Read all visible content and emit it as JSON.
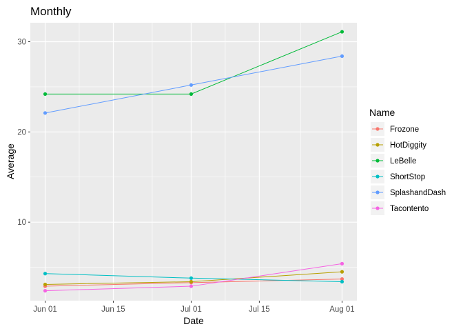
{
  "chart_data": {
    "type": "line",
    "title": "Monthly",
    "xlabel": "Date",
    "ylabel": "Average",
    "x": [
      "2023-06-01",
      "2023-07-01",
      "2023-08-01"
    ],
    "x_ticks": [
      {
        "value": "2023-06-01",
        "label": "Jun 01"
      },
      {
        "value": "2023-06-15",
        "label": "Jun 15"
      },
      {
        "value": "2023-07-01",
        "label": "Jul 01"
      },
      {
        "value": "2023-07-15",
        "label": "Jul 15"
      },
      {
        "value": "2023-08-01",
        "label": "Aug 01"
      }
    ],
    "y_ticks": [
      10,
      20,
      30
    ],
    "ylim": [
      1.3,
      32.1
    ],
    "grid": true,
    "legend": {
      "title": "Name",
      "position": "right"
    },
    "series": [
      {
        "name": "Frozone",
        "color": "#F8766D",
        "values": [
          2.9,
          3.3,
          3.7
        ]
      },
      {
        "name": "HotDiggity",
        "color": "#B79F00",
        "values": [
          3.1,
          3.4,
          4.5
        ]
      },
      {
        "name": "LeBelle",
        "color": "#00BA38",
        "values": [
          24.2,
          24.2,
          31.1
        ]
      },
      {
        "name": "ShortStop",
        "color": "#00BFC4",
        "values": [
          4.3,
          3.8,
          3.4
        ]
      },
      {
        "name": "SplashandDash",
        "color": "#619CFF",
        "values": [
          22.1,
          25.2,
          28.4
        ]
      },
      {
        "name": "Tacontento",
        "color": "#F564E3",
        "values": [
          2.4,
          2.9,
          5.4
        ]
      }
    ]
  }
}
